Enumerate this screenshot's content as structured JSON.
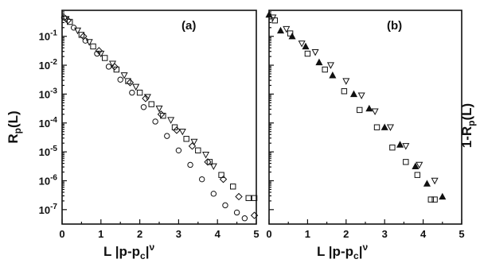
{
  "chart_data": [
    {
      "type": "scatter",
      "panel_label": "(a)",
      "xlabel": "L |p-p_c|^ν",
      "ylabel": "R_p(L)",
      "xlim": [
        0,
        5
      ],
      "ylim_log10": [
        -7.5,
        -0.1
      ],
      "y_scale": "log",
      "x_ticks": [
        "0",
        "1",
        "2",
        "3",
        "4",
        "5"
      ],
      "y_ticks": [
        {
          "base": "10",
          "exp": "-1",
          "value": -1
        },
        {
          "base": "10",
          "exp": "-2",
          "value": -2
        },
        {
          "base": "10",
          "exp": "-3",
          "value": -3
        },
        {
          "base": "10",
          "exp": "-4",
          "value": -4
        },
        {
          "base": "10",
          "exp": "-5",
          "value": -5
        },
        {
          "base": "10",
          "exp": "-6",
          "value": -6
        },
        {
          "base": "10",
          "exp": "-7",
          "value": -7
        }
      ],
      "series": [
        {
          "marker": "circle",
          "points": [
            [
              0.05,
              -0.35
            ],
            [
              0.3,
              -0.7
            ],
            [
              0.6,
              -1.15
            ],
            [
              0.9,
              -1.6
            ],
            [
              1.2,
              -2.05
            ],
            [
              1.5,
              -2.5
            ],
            [
              1.8,
              -2.95
            ],
            [
              2.1,
              -3.45
            ],
            [
              2.4,
              -3.95
            ],
            [
              2.7,
              -4.45
            ],
            [
              3.0,
              -4.95
            ],
            [
              3.3,
              -5.45
            ],
            [
              3.6,
              -5.95
            ],
            [
              3.9,
              -6.45
            ],
            [
              4.2,
              -6.85
            ],
            [
              4.5,
              -7.1
            ],
            [
              4.7,
              -7.3
            ]
          ]
        },
        {
          "marker": "triangle-down",
          "points": [
            [
              0.1,
              -0.4
            ],
            [
              0.4,
              -0.8
            ],
            [
              0.7,
              -1.2
            ],
            [
              1.0,
              -1.6
            ],
            [
              1.3,
              -1.95
            ],
            [
              1.6,
              -2.35
            ],
            [
              1.9,
              -2.75
            ],
            [
              2.2,
              -3.1
            ],
            [
              2.5,
              -3.5
            ],
            [
              2.8,
              -3.9
            ],
            [
              3.1,
              -4.3
            ],
            [
              3.4,
              -4.65
            ],
            [
              3.7,
              -5.1
            ],
            [
              3.9,
              -5.5
            ]
          ]
        },
        {
          "marker": "square",
          "points": [
            [
              0.2,
              -0.5
            ],
            [
              0.5,
              -0.95
            ],
            [
              0.8,
              -1.35
            ],
            [
              1.1,
              -1.75
            ],
            [
              1.4,
              -2.15
            ],
            [
              1.7,
              -2.55
            ],
            [
              2.0,
              -2.95
            ],
            [
              2.3,
              -3.35
            ],
            [
              2.6,
              -3.75
            ],
            [
              2.9,
              -4.15
            ],
            [
              3.2,
              -4.55
            ],
            [
              3.5,
              -4.95
            ],
            [
              3.8,
              -5.35
            ],
            [
              4.1,
              -5.8
            ],
            [
              4.4,
              -6.2
            ],
            [
              4.8,
              -6.6
            ],
            [
              4.95,
              -6.6
            ]
          ]
        },
        {
          "marker": "diamond",
          "points": [
            [
              0.15,
              -0.45
            ],
            [
              0.55,
              -1.0
            ],
            [
              0.95,
              -1.5
            ],
            [
              1.35,
              -2.05
            ],
            [
              1.75,
              -2.6
            ],
            [
              2.15,
              -3.15
            ],
            [
              2.55,
              -3.7
            ],
            [
              2.95,
              -4.25
            ],
            [
              3.35,
              -4.8
            ],
            [
              3.75,
              -5.35
            ],
            [
              4.15,
              -5.95
            ],
            [
              4.55,
              -6.55
            ],
            [
              4.95,
              -7.2
            ]
          ]
        }
      ]
    },
    {
      "type": "scatter",
      "panel_label": "(b)",
      "xlabel": "L |p-p_c|^ν",
      "ylabel": "1-R_p(L)",
      "xlim": [
        0,
        5
      ],
      "ylim_log10": [
        -7.5,
        -0.1
      ],
      "y_scale": "log",
      "x_ticks": [
        "0",
        "1",
        "2",
        "3",
        "4",
        "5"
      ],
      "series": [
        {
          "marker": "triangle-up",
          "points": [
            [
              0.0,
              -0.25
            ],
            [
              0.3,
              -0.8
            ],
            [
              0.6,
              -1.0
            ],
            [
              0.95,
              -1.35
            ],
            [
              1.3,
              -1.9
            ],
            [
              1.65,
              -2.35
            ],
            [
              2.2,
              -3.0
            ],
            [
              2.6,
              -3.5
            ],
            [
              3.0,
              -4.15
            ],
            [
              3.4,
              -4.75
            ],
            [
              3.8,
              -5.5
            ],
            [
              4.1,
              -6.1
            ],
            [
              4.5,
              -6.55
            ]
          ]
        },
        {
          "marker": "triangle-down",
          "points": [
            [
              0.1,
              -0.35
            ],
            [
              0.45,
              -0.75
            ],
            [
              0.85,
              -1.25
            ],
            [
              1.2,
              -1.55
            ],
            [
              1.6,
              -2.0
            ],
            [
              2.0,
              -2.55
            ],
            [
              2.4,
              -3.05
            ],
            [
              2.75,
              -3.6
            ],
            [
              3.15,
              -4.15
            ],
            [
              3.55,
              -4.8
            ],
            [
              3.9,
              -5.45
            ],
            [
              4.3,
              -6.0
            ]
          ]
        },
        {
          "marker": "square",
          "points": [
            [
              0.15,
              -0.45
            ],
            [
              0.55,
              -0.9
            ],
            [
              1.0,
              -1.6
            ],
            [
              1.45,
              -2.15
            ],
            [
              1.95,
              -2.9
            ],
            [
              2.35,
              -3.55
            ],
            [
              2.8,
              -4.15
            ],
            [
              3.2,
              -4.85
            ],
            [
              3.55,
              -5.35
            ],
            [
              3.85,
              -5.8
            ],
            [
              4.2,
              -6.65
            ],
            [
              4.3,
              -6.65
            ]
          ]
        }
      ]
    }
  ]
}
